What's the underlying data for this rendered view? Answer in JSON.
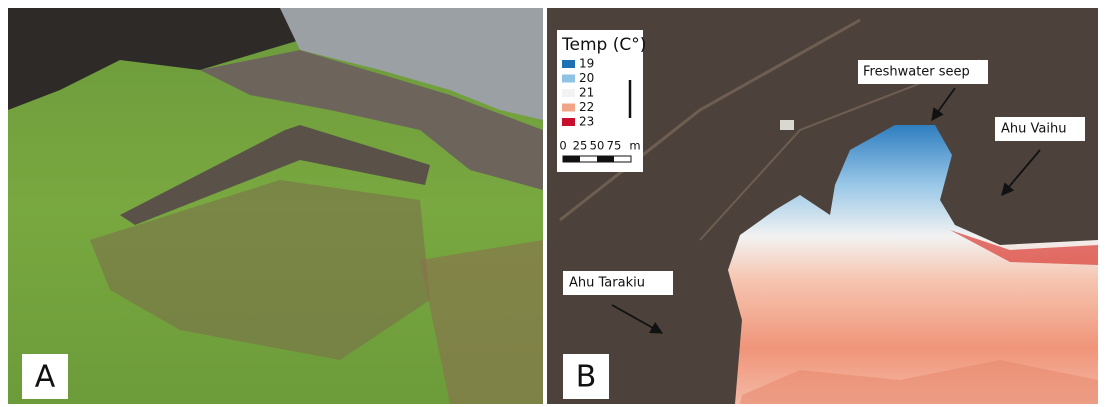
{
  "panels": [
    {
      "label": "A"
    },
    {
      "label": "B",
      "legend": {
        "title": "Temp (C°)",
        "items": [
          {
            "label": "19",
            "color": "#1f6fb4"
          },
          {
            "label": "20",
            "color": "#8ec3e4"
          },
          {
            "label": "21",
            "color": "#f3f3f3"
          },
          {
            "label": "22",
            "color": "#f2a486"
          },
          {
            "label": "23",
            "color": "#c8102e"
          }
        ]
      },
      "scale_bar": {
        "ticks": [
          0,
          25,
          50,
          75
        ],
        "unit": "m"
      },
      "annotations": [
        "Freshwater seep",
        "Ahu Vaihu",
        "Ahu Tarakiu"
      ]
    }
  ]
}
